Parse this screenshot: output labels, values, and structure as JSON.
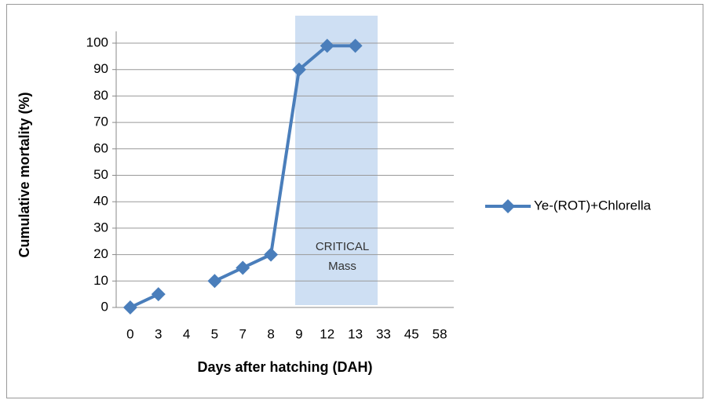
{
  "chart_data": {
    "type": "line",
    "xlabel": "Days after hatching (DAH)",
    "ylabel": "Cumulative mortality (%)",
    "categories": [
      "0",
      "3",
      "4",
      "5",
      "7",
      "8",
      "9",
      "12",
      "13",
      "33",
      "45",
      "58"
    ],
    "series": [
      {
        "name": "Ye-(ROT)+Chlorella",
        "color": "#4a7ebb",
        "values": [
          0,
          5,
          null,
          10,
          15,
          20,
          90,
          99,
          99,
          null,
          null,
          null
        ]
      }
    ],
    "ylim": [
      0,
      100
    ],
    "yticks": [
      0,
      10,
      20,
      30,
      40,
      50,
      60,
      70,
      80,
      90,
      100
    ],
    "grid": true,
    "legend": "right",
    "annotation": [
      "CRITICAL",
      "Mass"
    ]
  }
}
